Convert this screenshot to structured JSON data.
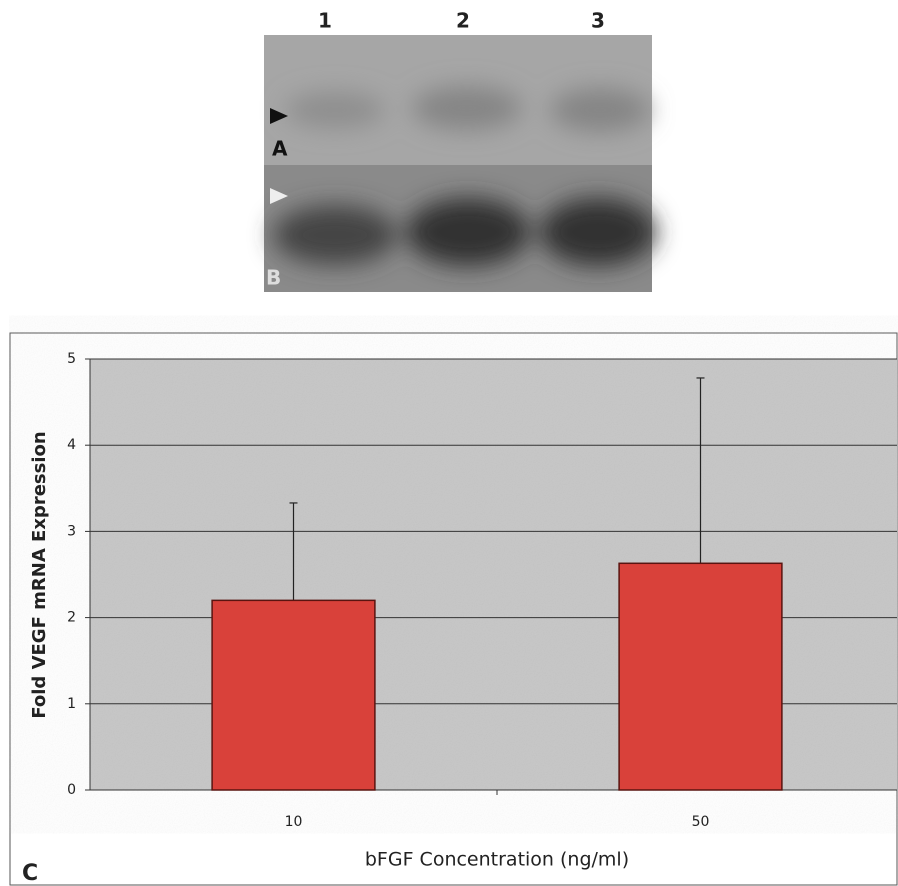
{
  "blot": {
    "lanes": [
      "1",
      "2",
      "3"
    ],
    "panels": [
      "A",
      "B"
    ]
  },
  "chart_data": {
    "type": "bar",
    "panel_label": "C",
    "x_label": "bFGF Concentration (ng/ml)",
    "y_label": "Fold VEGF mRNA Expression",
    "categories": [
      "10",
      "50"
    ],
    "values": [
      2.2,
      2.63
    ],
    "errors": [
      1.13,
      2.15
    ],
    "color": "#d9413a",
    "ylim": [
      0,
      5
    ],
    "yticks": [
      0,
      1,
      2,
      3,
      4,
      5
    ],
    "grid": true
  }
}
